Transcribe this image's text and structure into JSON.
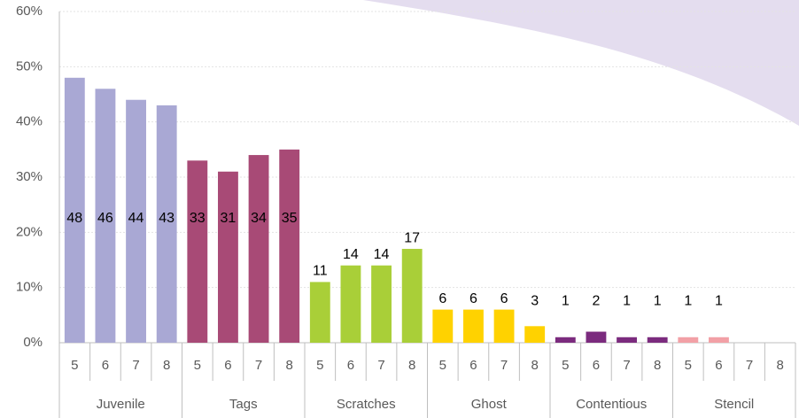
{
  "chart_data": {
    "type": "bar",
    "categories": [
      "5",
      "6",
      "7",
      "8"
    ],
    "series": [
      {
        "name": "Juvenile",
        "color": "#a9a8d4",
        "values": [
          48,
          46,
          44,
          43
        ]
      },
      {
        "name": "Tags",
        "color": "#a84a76",
        "values": [
          33,
          31,
          34,
          35
        ]
      },
      {
        "name": "Scratches",
        "color": "#a9cf38",
        "values": [
          11,
          14,
          14,
          17
        ]
      },
      {
        "name": "Ghost",
        "color": "#ffd200",
        "values": [
          6,
          6,
          6,
          3
        ]
      },
      {
        "name": "Contentious",
        "color": "#7b2b7e",
        "values": [
          1,
          2,
          1,
          1
        ]
      },
      {
        "name": "Stencil",
        "color": "#f2a0a6",
        "values": [
          1,
          1,
          null,
          null
        ]
      }
    ],
    "ylim": [
      0,
      60
    ],
    "yticks": [
      {
        "value": 0,
        "label": "0%"
      },
      {
        "value": 10,
        "label": "10%"
      },
      {
        "value": 20,
        "label": "20%"
      },
      {
        "value": 30,
        "label": "30%"
      },
      {
        "value": 40,
        "label": "40%"
      },
      {
        "value": 50,
        "label": "50%"
      },
      {
        "value": 60,
        "label": "60%"
      }
    ],
    "grid": true
  }
}
